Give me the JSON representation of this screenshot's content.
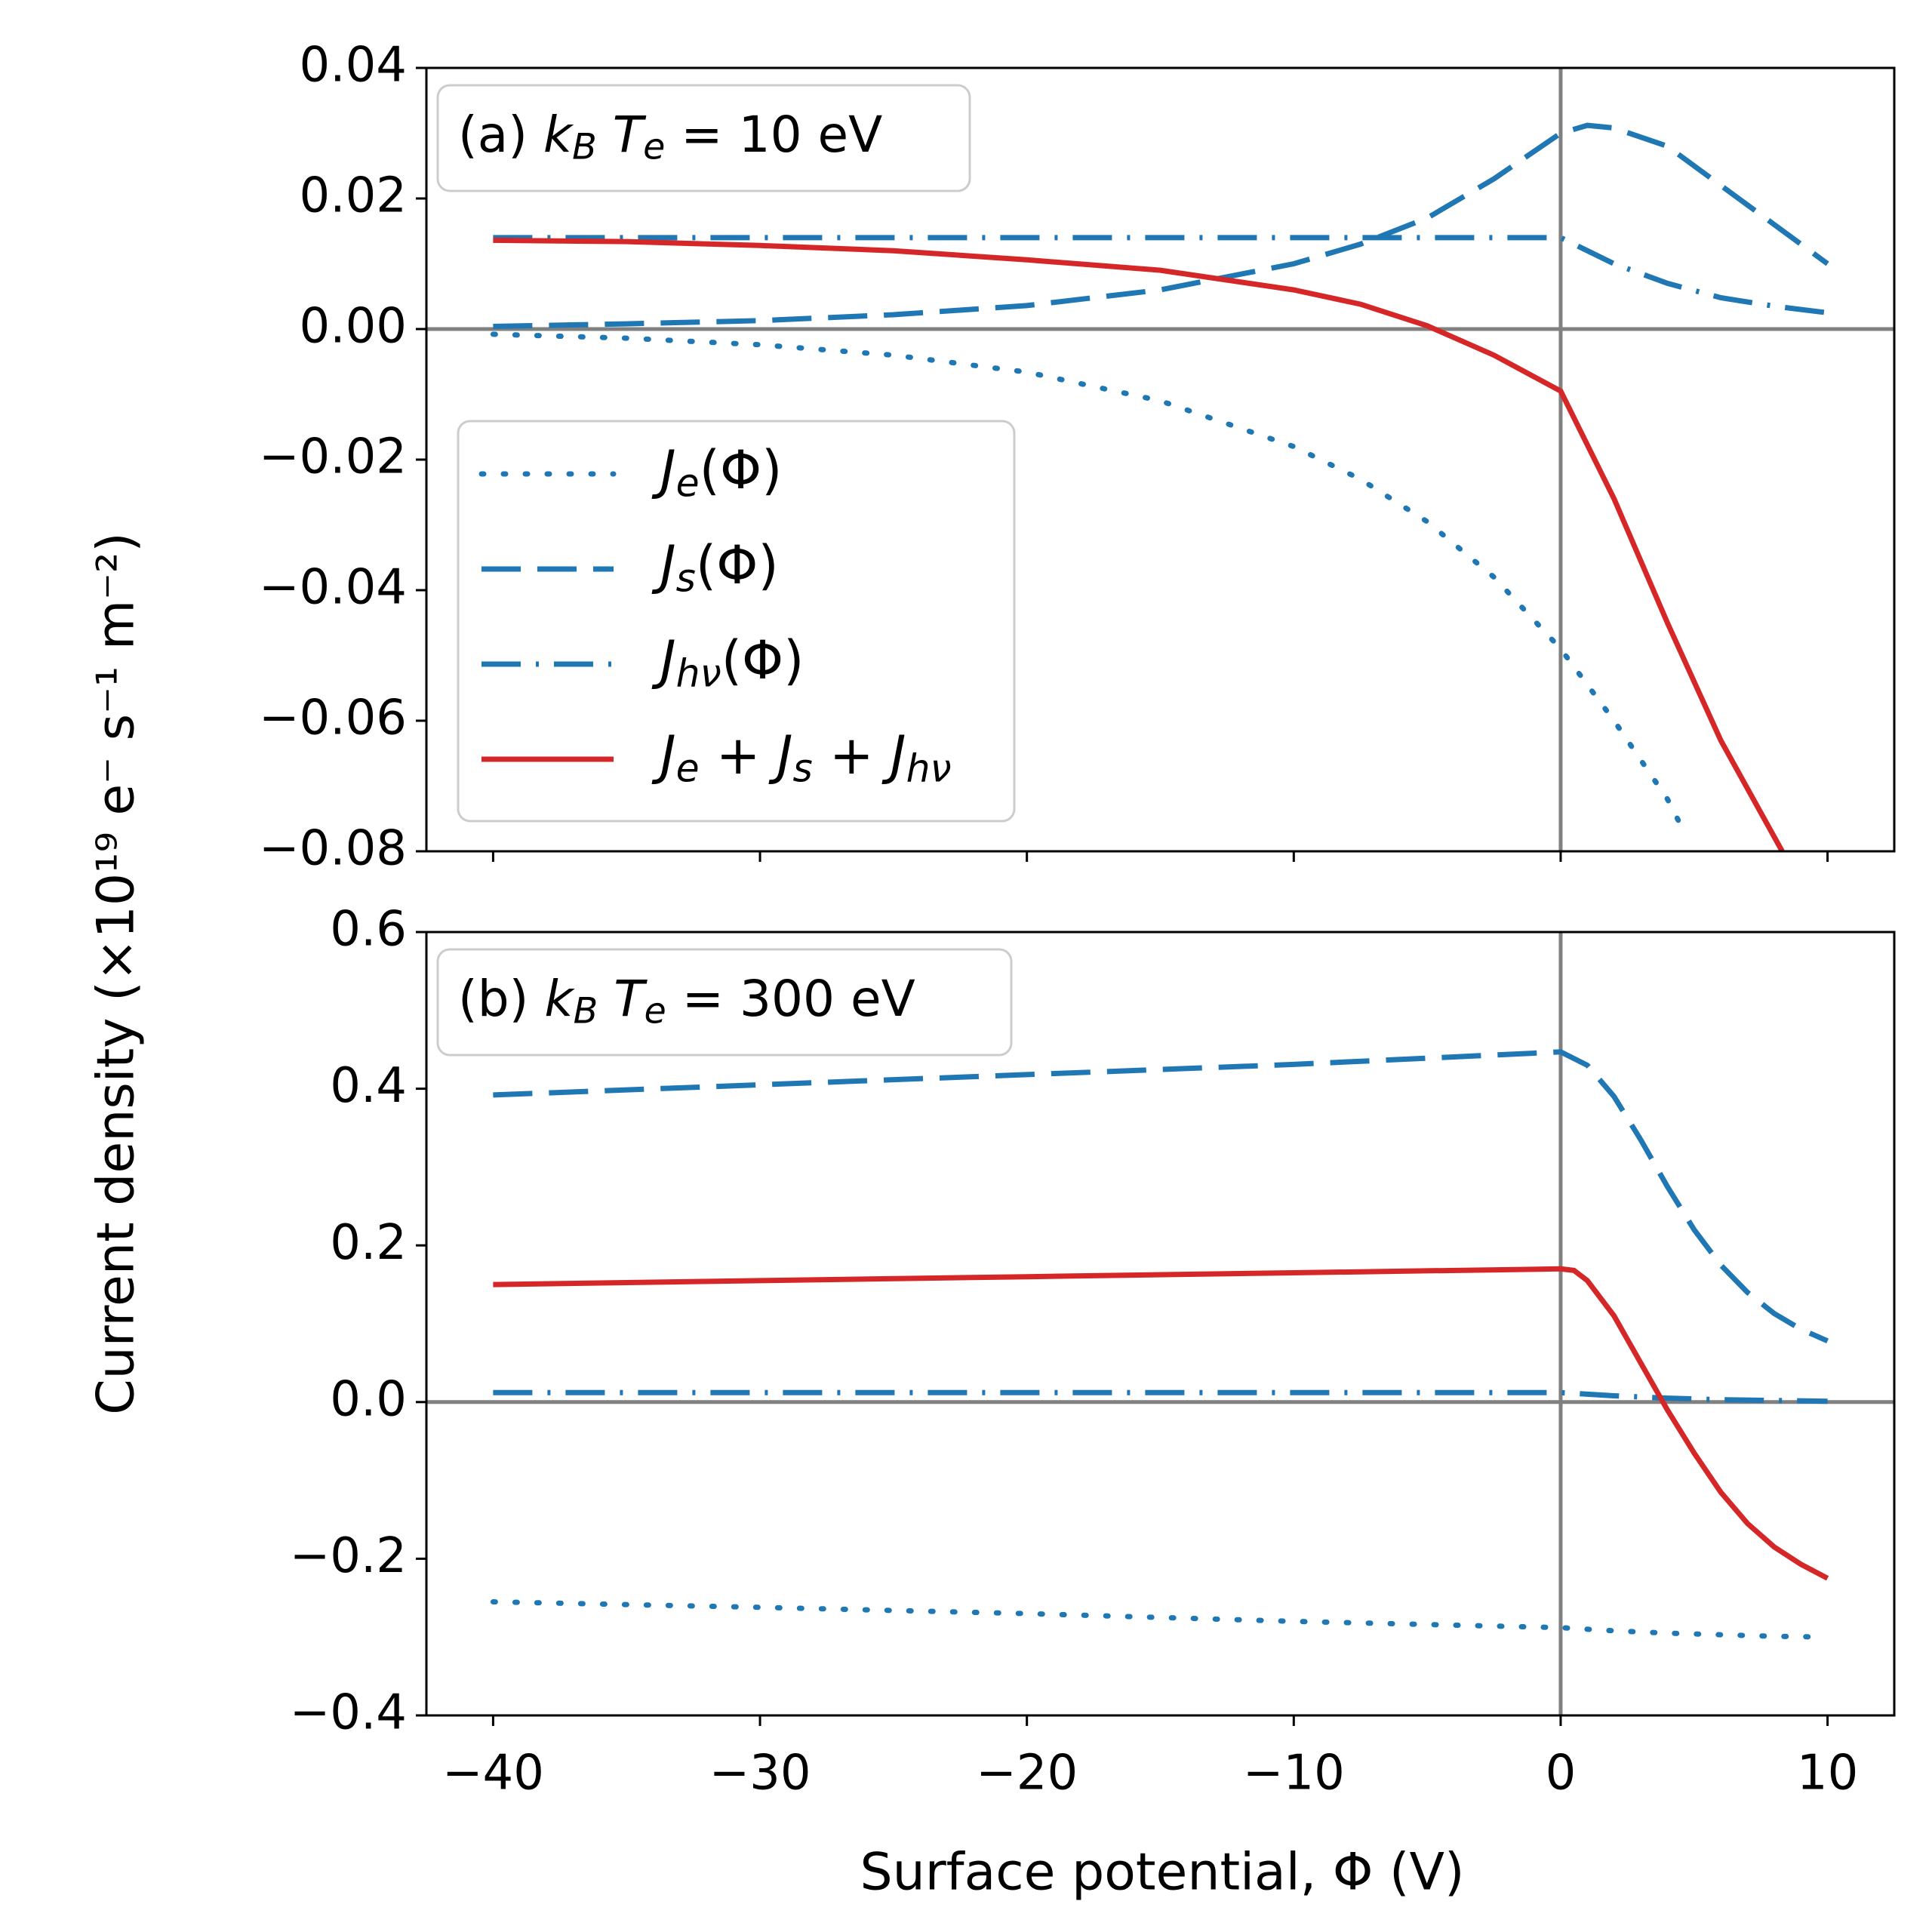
{
  "figure": {
    "ylabel": "Current density (×10¹⁹ e⁻ s⁻¹ m⁻²)",
    "xlabel": "Surface potential, Φ (V)"
  },
  "chart_data": [
    {
      "type": "line",
      "panel": "a",
      "annotation": "(a) k_B T_e = 10 eV",
      "xlim": [
        -42.5,
        12.5
      ],
      "ylim": [
        -0.08,
        0.04
      ],
      "xticks": [
        -40,
        -30,
        -20,
        -10,
        0,
        10
      ],
      "xtick_labels": [
        "−40",
        "−30",
        "−20",
        "−10",
        "0",
        "10"
      ],
      "yticks": [
        -0.08,
        -0.06,
        -0.04,
        -0.02,
        0.0,
        0.02,
        0.04
      ],
      "ytick_labels": [
        "−0.08",
        "−0.06",
        "−0.04",
        "−0.02",
        "0.00",
        "0.02",
        "0.04"
      ],
      "reference_lines": {
        "x": 0,
        "y": 0
      },
      "legend_position": "lower-left",
      "series": [
        {
          "name": "J_e(Φ)",
          "style": "dotted",
          "color": "#1f77b4",
          "x": [
            -40,
            -35,
            -30,
            -25,
            -20,
            -15,
            -10,
            -7.5,
            -5,
            -2.5,
            0,
            2,
            4,
            4.5
          ],
          "y": [
            -0.0008,
            -0.0014,
            -0.0024,
            -0.004,
            -0.0066,
            -0.011,
            -0.018,
            -0.023,
            -0.0295,
            -0.038,
            -0.049,
            -0.06,
            -0.072,
            -0.076
          ]
        },
        {
          "name": "J_s(Φ)",
          "style": "dashed",
          "color": "#1f77b4",
          "x": [
            -40,
            -35,
            -30,
            -25,
            -20,
            -15,
            -10,
            -7.5,
            -5,
            -2.5,
            0,
            1,
            2,
            4,
            6,
            8,
            10
          ],
          "y": [
            0.0004,
            0.0008,
            0.0013,
            0.0022,
            0.0036,
            0.006,
            0.01,
            0.013,
            0.017,
            0.023,
            0.03,
            0.0312,
            0.0308,
            0.028,
            0.022,
            0.016,
            0.01
          ]
        },
        {
          "name": "J_hν(Φ)",
          "style": "dashdot",
          "color": "#1f77b4",
          "x": [
            -40,
            -30,
            -20,
            -10,
            -5,
            0,
            1,
            2,
            4,
            6,
            8,
            10
          ],
          "y": [
            0.014,
            0.014,
            0.014,
            0.014,
            0.014,
            0.014,
            0.012,
            0.01,
            0.007,
            0.0048,
            0.0035,
            0.0025
          ]
        },
        {
          "name": "J_e + J_s + J_hν",
          "style": "solid",
          "color": "#d62728",
          "x": [
            -40,
            -35,
            -30,
            -25,
            -20,
            -15,
            -10,
            -7.5,
            -5,
            -2.5,
            0,
            2,
            4,
            6,
            8.3
          ],
          "y": [
            0.0136,
            0.0134,
            0.0128,
            0.012,
            0.0106,
            0.009,
            0.006,
            0.0038,
            0.0005,
            -0.004,
            -0.0095,
            -0.026,
            -0.045,
            -0.063,
            -0.08
          ]
        }
      ]
    },
    {
      "type": "line",
      "panel": "b",
      "annotation": "(b) k_B T_e = 300 eV",
      "xlim": [
        -42.5,
        12.5
      ],
      "ylim": [
        -0.4,
        0.6
      ],
      "xticks": [
        -40,
        -30,
        -20,
        -10,
        0,
        10
      ],
      "xtick_labels": [
        "−40",
        "−30",
        "−20",
        "−10",
        "0",
        "10"
      ],
      "yticks": [
        -0.4,
        -0.2,
        0.0,
        0.2,
        0.4,
        0.6
      ],
      "ytick_labels": [
        "−0.4",
        "−0.2",
        "0.0",
        "0.2",
        "0.4",
        "0.6"
      ],
      "reference_lines": {
        "x": 0,
        "y": 0
      },
      "series": [
        {
          "name": "J_e(Φ)",
          "style": "dotted",
          "color": "#1f77b4",
          "x": [
            -40,
            -30,
            -20,
            -10,
            0,
            2,
            4,
            6,
            8,
            10
          ],
          "y": [
            -0.255,
            -0.262,
            -0.27,
            -0.28,
            -0.288,
            -0.292,
            -0.295,
            -0.297,
            -0.299,
            -0.3
          ]
        },
        {
          "name": "J_s(Φ)",
          "style": "dashed",
          "color": "#1f77b4",
          "x": [
            -40,
            -30,
            -20,
            -10,
            0,
            1,
            2,
            3,
            4,
            5,
            6,
            7,
            8,
            9,
            10
          ],
          "y": [
            0.392,
            0.405,
            0.418,
            0.431,
            0.447,
            0.43,
            0.39,
            0.335,
            0.275,
            0.22,
            0.175,
            0.14,
            0.113,
            0.093,
            0.078
          ]
        },
        {
          "name": "J_hν(Φ)",
          "style": "dashdot",
          "color": "#1f77b4",
          "x": [
            -40,
            -20,
            0,
            2,
            4,
            6,
            8,
            10
          ],
          "y": [
            0.012,
            0.012,
            0.012,
            0.008,
            0.005,
            0.003,
            0.002,
            0.001
          ]
        },
        {
          "name": "J_e + J_s + J_hν",
          "style": "solid",
          "color": "#d62728",
          "x": [
            -40,
            -30,
            -20,
            -10,
            0,
            0.5,
            1,
            2,
            3,
            4,
            5,
            6,
            7,
            8,
            9,
            10
          ],
          "y": [
            0.15,
            0.155,
            0.16,
            0.165,
            0.17,
            0.168,
            0.155,
            0.11,
            0.05,
            -0.01,
            -0.065,
            -0.115,
            -0.155,
            -0.185,
            -0.207,
            -0.225
          ]
        }
      ]
    }
  ]
}
